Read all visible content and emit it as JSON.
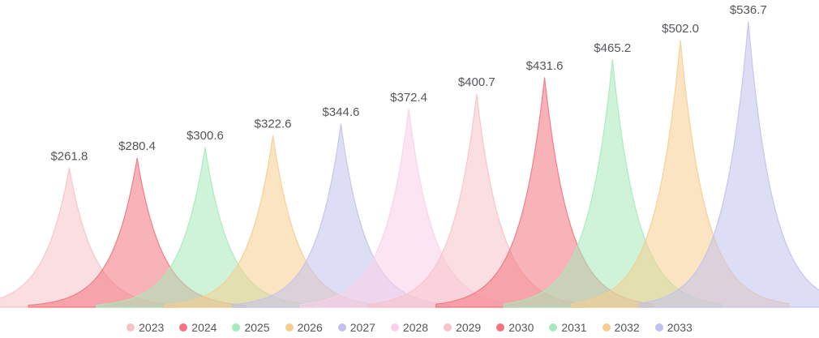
{
  "chart_data": {
    "type": "area",
    "title": "",
    "description": "Eleven overlapping sharp spike-shaped area series, one per year, values shown as dollar labels above each peak",
    "categories": [
      "2023",
      "2024",
      "2025",
      "2026",
      "2027",
      "2028",
      "2029",
      "2030",
      "2031",
      "2032",
      "2033"
    ],
    "values": [
      261.8,
      280.4,
      300.6,
      322.6,
      344.6,
      372.4,
      400.7,
      431.6,
      465.2,
      502.0,
      536.7
    ],
    "value_labels": [
      "$261.8",
      "$280.4",
      "$300.6",
      "$322.6",
      "$344.6",
      "$372.4",
      "$400.7",
      "$431.6",
      "$465.2",
      "$502.0",
      "$536.7"
    ],
    "palette": [
      "#f7c2c9",
      "#f3747e",
      "#a5eaba",
      "#f6cd90",
      "#c2c1ee",
      "#fad0e8"
    ],
    "color_index": [
      0,
      1,
      2,
      3,
      4,
      5,
      0,
      1,
      2,
      3,
      4
    ],
    "fill_opacity": 0.55,
    "stroke_opacity": 0.9,
    "label_color": "#55565a",
    "xlabel": "",
    "ylabel": "",
    "ylim": [
      0,
      560
    ],
    "grid": false,
    "axes_visible": false,
    "legend_position": "bottom"
  },
  "legend": {
    "items": [
      {
        "label": "2023"
      },
      {
        "label": "2024"
      },
      {
        "label": "2025"
      },
      {
        "label": "2026"
      },
      {
        "label": "2027"
      },
      {
        "label": "2028"
      },
      {
        "label": "2029"
      },
      {
        "label": "2030"
      },
      {
        "label": "2031"
      },
      {
        "label": "2032"
      },
      {
        "label": "2033"
      }
    ]
  }
}
